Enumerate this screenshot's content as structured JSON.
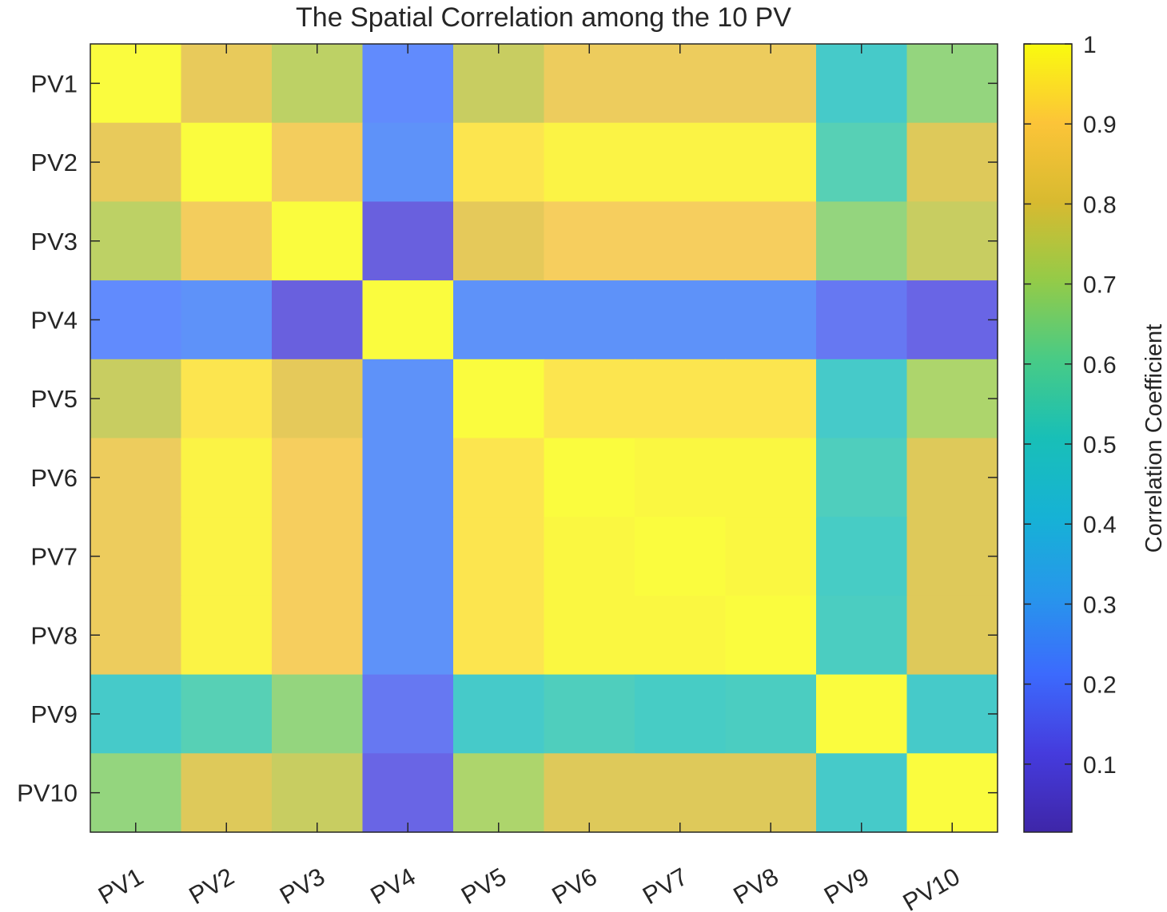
{
  "chart_data": {
    "type": "heatmap",
    "title": "The Spatial Correlation among the 10 PV",
    "x_categories": [
      "PV1",
      "PV2",
      "PV3",
      "PV4",
      "PV5",
      "PV6",
      "PV7",
      "PV8",
      "PV9",
      "PV10"
    ],
    "y_categories": [
      "PV1",
      "PV2",
      "PV3",
      "PV4",
      "PV5",
      "PV6",
      "PV7",
      "PV8",
      "PV9",
      "PV10"
    ],
    "values": [
      [
        1.0,
        0.83,
        0.74,
        0.22,
        0.76,
        0.85,
        0.85,
        0.85,
        0.49,
        0.67
      ],
      [
        0.83,
        1.0,
        0.87,
        0.24,
        0.95,
        0.98,
        0.98,
        0.98,
        0.55,
        0.8
      ],
      [
        0.74,
        0.87,
        1.0,
        0.1,
        0.82,
        0.88,
        0.88,
        0.88,
        0.67,
        0.76
      ],
      [
        0.22,
        0.24,
        0.1,
        1.0,
        0.24,
        0.24,
        0.24,
        0.24,
        0.17,
        0.12
      ],
      [
        0.76,
        0.95,
        0.82,
        0.24,
        1.0,
        0.95,
        0.95,
        0.95,
        0.49,
        0.71
      ],
      [
        0.85,
        0.98,
        0.88,
        0.24,
        0.95,
        1.0,
        0.99,
        0.99,
        0.53,
        0.8
      ],
      [
        0.85,
        0.98,
        0.88,
        0.24,
        0.95,
        0.99,
        1.0,
        0.99,
        0.51,
        0.8
      ],
      [
        0.85,
        0.98,
        0.88,
        0.24,
        0.95,
        0.99,
        0.99,
        1.0,
        0.52,
        0.8
      ],
      [
        0.49,
        0.55,
        0.67,
        0.17,
        0.49,
        0.53,
        0.51,
        0.52,
        1.0,
        0.49
      ],
      [
        0.67,
        0.8,
        0.76,
        0.12,
        0.71,
        0.8,
        0.8,
        0.8,
        0.49,
        1.0
      ]
    ],
    "colormap": "parula",
    "colorbar": {
      "label": "Correlation Coefficient",
      "range": [
        0.015,
        1.0
      ],
      "ticks": [
        0.1,
        0.2,
        0.3,
        0.4,
        0.5,
        0.6,
        0.7,
        0.8,
        0.9,
        1
      ],
      "tick_labels": [
        "0.1",
        "0.2",
        "0.3",
        "0.4",
        "0.5",
        "0.6",
        "0.7",
        "0.8",
        "0.9",
        "1"
      ]
    },
    "cell_alpha": 0.8,
    "grid": false
  }
}
